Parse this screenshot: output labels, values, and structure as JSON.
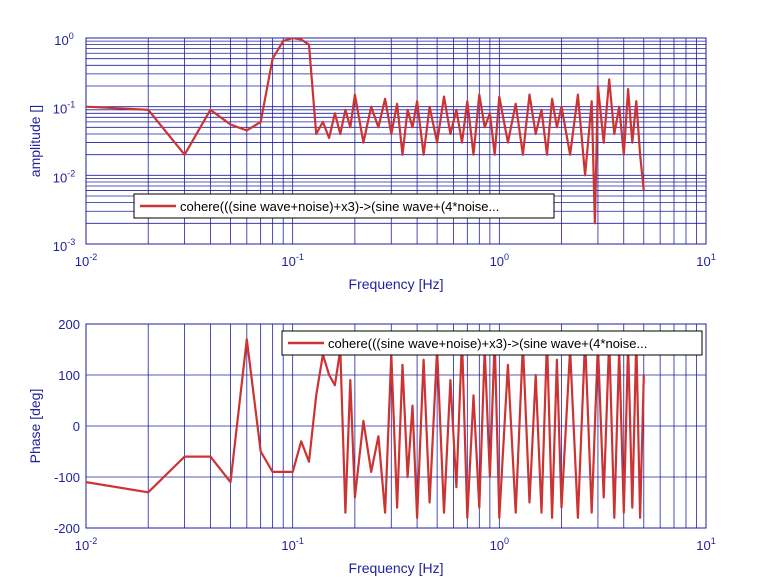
{
  "colors": {
    "axes": "#1f1fa0",
    "series": "#cc3333",
    "background": "#ffffff"
  },
  "chart_data": [
    {
      "type": "line",
      "xscale": "log",
      "yscale": "log",
      "xlim": [
        0.01,
        10
      ],
      "ylim": [
        0.001,
        1
      ],
      "grid": "on (major and minor)",
      "xlabel": "Frequency  [Hz]",
      "ylabel": "amplitude  []",
      "xticks": [
        {
          "base": "10",
          "exp": "-2"
        },
        {
          "base": "10",
          "exp": "-1"
        },
        {
          "base": "10",
          "exp": "0"
        },
        {
          "base": "10",
          "exp": "1"
        }
      ],
      "yticks": [
        {
          "base": "10",
          "exp": "-3"
        },
        {
          "base": "10",
          "exp": "-2"
        },
        {
          "base": "10",
          "exp": "-1"
        },
        {
          "base": "10",
          "exp": "0"
        }
      ],
      "legend_position": "lower-left",
      "series": [
        {
          "name": "cohere(((sine wave+noise)+x3)->(sine wave+(4*noise...",
          "x": [
            0.01,
            0.02,
            0.03,
            0.04,
            0.05,
            0.06,
            0.07,
            0.08,
            0.09,
            0.1,
            0.11,
            0.12,
            0.13,
            0.14,
            0.15,
            0.16,
            0.17,
            0.18,
            0.19,
            0.2,
            0.22,
            0.24,
            0.26,
            0.28,
            0.3,
            0.32,
            0.34,
            0.36,
            0.38,
            0.4,
            0.43,
            0.46,
            0.5,
            0.54,
            0.58,
            0.62,
            0.66,
            0.7,
            0.75,
            0.8,
            0.85,
            0.9,
            0.95,
            1.0,
            1.1,
            1.2,
            1.3,
            1.4,
            1.5,
            1.6,
            1.7,
            1.8,
            1.9,
            2.0,
            2.2,
            2.4,
            2.6,
            2.8,
            2.9,
            3.0,
            3.2,
            3.4,
            3.6,
            3.8,
            4.0,
            4.2,
            4.4,
            4.6,
            4.8,
            5.0
          ],
          "y": [
            0.1,
            0.09,
            0.02,
            0.09,
            0.055,
            0.045,
            0.06,
            0.5,
            0.9,
            1.0,
            0.95,
            0.8,
            0.04,
            0.06,
            0.035,
            0.08,
            0.04,
            0.09,
            0.05,
            0.15,
            0.03,
            0.1,
            0.05,
            0.13,
            0.04,
            0.11,
            0.02,
            0.09,
            0.05,
            0.12,
            0.02,
            0.1,
            0.03,
            0.14,
            0.04,
            0.09,
            0.03,
            0.12,
            0.02,
            0.15,
            0.05,
            0.08,
            0.02,
            0.14,
            0.03,
            0.11,
            0.02,
            0.15,
            0.04,
            0.09,
            0.02,
            0.13,
            0.05,
            0.1,
            0.02,
            0.15,
            0.01,
            0.12,
            0.002,
            0.2,
            0.03,
            0.25,
            0.04,
            0.1,
            0.02,
            0.18,
            0.03,
            0.12,
            0.02,
            0.006
          ]
        }
      ]
    },
    {
      "type": "line",
      "xscale": "log",
      "yscale": "linear",
      "xlim": [
        0.01,
        10
      ],
      "ylim": [
        -200,
        200
      ],
      "grid": "on (x major and minor, y major)",
      "xlabel": "Frequency  [Hz]",
      "ylabel": "Phase [deg]",
      "xticks": [
        {
          "base": "10",
          "exp": "-2"
        },
        {
          "base": "10",
          "exp": "-1"
        },
        {
          "base": "10",
          "exp": "0"
        },
        {
          "base": "10",
          "exp": "1"
        }
      ],
      "yticks": [
        "-200",
        "-100",
        "0",
        "100",
        "200"
      ],
      "legend_position": "top-right",
      "series": [
        {
          "name": "cohere(((sine wave+noise)+x3)->(sine wave+(4*noise...",
          "x": [
            0.01,
            0.02,
            0.03,
            0.04,
            0.05,
            0.06,
            0.07,
            0.08,
            0.09,
            0.1,
            0.11,
            0.12,
            0.13,
            0.14,
            0.15,
            0.16,
            0.17,
            0.18,
            0.19,
            0.2,
            0.22,
            0.24,
            0.26,
            0.28,
            0.3,
            0.32,
            0.34,
            0.36,
            0.38,
            0.4,
            0.43,
            0.46,
            0.5,
            0.54,
            0.58,
            0.62,
            0.66,
            0.7,
            0.75,
            0.8,
            0.85,
            0.9,
            0.95,
            1.0,
            1.1,
            1.2,
            1.3,
            1.4,
            1.5,
            1.6,
            1.7,
            1.8,
            1.9,
            2.0,
            2.2,
            2.4,
            2.6,
            2.8,
            3.0,
            3.2,
            3.4,
            3.6,
            3.8,
            4.0,
            4.2,
            4.4,
            4.6,
            4.8,
            5.0
          ],
          "y": [
            -110,
            -130,
            -60,
            -60,
            -110,
            170,
            -50,
            -90,
            -90,
            -90,
            -30,
            -70,
            60,
            140,
            100,
            80,
            150,
            -170,
            90,
            -140,
            10,
            -90,
            -20,
            -170,
            140,
            -160,
            120,
            -100,
            40,
            -180,
            130,
            -150,
            150,
            -170,
            90,
            -120,
            170,
            -180,
            60,
            -160,
            150,
            -100,
            170,
            -180,
            120,
            -170,
            160,
            -150,
            100,
            -170,
            170,
            -180,
            130,
            -160,
            150,
            -180,
            170,
            -170,
            160,
            -140,
            170,
            -180,
            150,
            -170,
            160,
            -160,
            170,
            -180,
            100
          ]
        }
      ]
    }
  ]
}
